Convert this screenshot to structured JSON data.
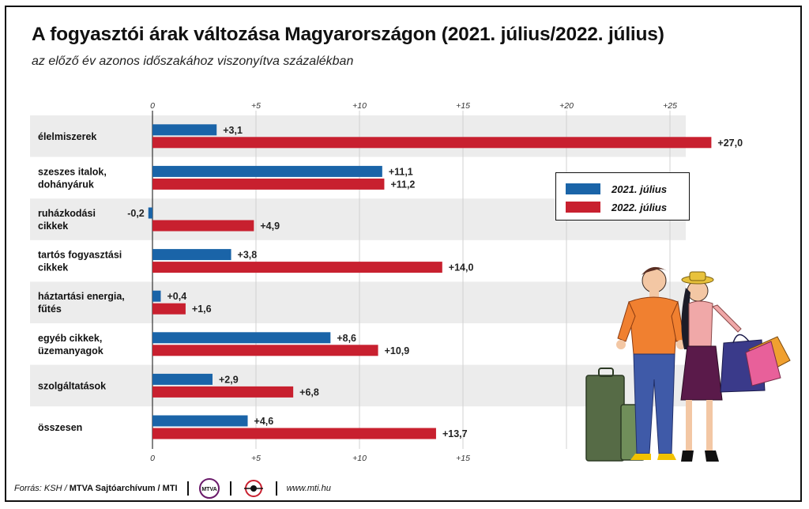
{
  "header": {
    "title": "A fogyasztói árak változása Magyarországon (2021. július/2022. július)",
    "subtitle": "az előző év azonos időszakához viszonyítva százalékban"
  },
  "legend": [
    {
      "label": "2021. július",
      "color": "#1a64a8"
    },
    {
      "label": "2022. július",
      "color": "#c8202f"
    }
  ],
  "chart_data": {
    "type": "bar",
    "orientation": "horizontal",
    "categories": [
      [
        "élelmiszerek"
      ],
      [
        "szeszes italok,",
        "dohányáruk"
      ],
      [
        "ruházkodási",
        "cikkek"
      ],
      [
        "tartós fogyasztási",
        "cikkek"
      ],
      [
        "háztartási energia,",
        "fűtés"
      ],
      [
        "egyéb cikkek,",
        "üzemanyagok"
      ],
      [
        "szolgáltatások"
      ],
      [
        "összesen"
      ]
    ],
    "series": [
      {
        "name": "2021. július",
        "color": "#1a64a8",
        "values": [
          3.1,
          11.1,
          -0.2,
          3.8,
          0.4,
          8.6,
          2.9,
          4.6
        ],
        "labels": [
          "+3,1",
          "+11,1",
          "-0,2",
          "+3,8",
          "+0,4",
          "+8,6",
          "+2,9",
          "+4,6"
        ]
      },
      {
        "name": "2022. július",
        "color": "#c8202f",
        "values": [
          27.0,
          11.2,
          4.9,
          14.0,
          1.6,
          10.9,
          6.8,
          13.7
        ],
        "labels": [
          "+27,0",
          "+11,2",
          "+4,9",
          "+14,0",
          "+1,6",
          "+10,9",
          "+6,8",
          "+13,7"
        ]
      }
    ],
    "xlim": [
      0,
      27
    ],
    "top_ticks": [
      {
        "v": 0,
        "label": "0"
      },
      {
        "v": 5,
        "label": "+5"
      },
      {
        "v": 10,
        "label": "+10"
      },
      {
        "v": 15,
        "label": "+15"
      },
      {
        "v": 20,
        "label": "+20"
      },
      {
        "v": 25,
        "label": "+25"
      }
    ],
    "bottom_ticks": [
      {
        "v": 0,
        "label": "0"
      },
      {
        "v": 5,
        "label": "+5"
      },
      {
        "v": 10,
        "label": "+10"
      },
      {
        "v": 15,
        "label": "+15"
      }
    ],
    "grid": true,
    "legend_position": "right"
  },
  "footer": {
    "source_prefix": "Forrás: KSH / ",
    "source_bold": "MTVA Sajtóarchívum / MTI",
    "mtva_logo_text": "MTVA",
    "website": "www.mti.hu"
  }
}
